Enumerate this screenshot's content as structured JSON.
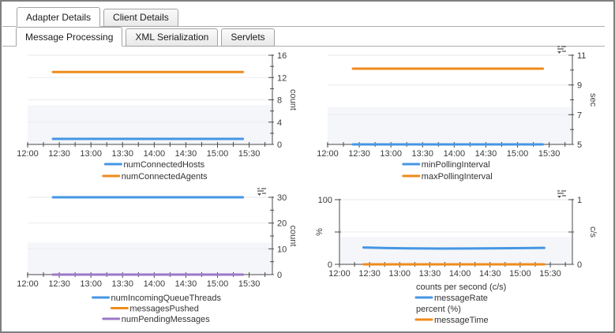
{
  "tabs": {
    "primary": [
      {
        "label": "Adapter Details",
        "active": true
      },
      {
        "label": "Client Details",
        "active": false
      }
    ],
    "secondary": [
      {
        "label": "Message Processing",
        "active": true
      },
      {
        "label": "XML Serialization",
        "active": false
      },
      {
        "label": "Servlets",
        "active": false
      }
    ]
  },
  "colors": {
    "blue": "#4596e3",
    "orange": "#ee8b1c",
    "purple": "#9b77c8",
    "axis": "#4a4a4a",
    "grid": "#ececec",
    "plot_top_edge": "#e4e7ea",
    "band": "#f4f6f9",
    "panel_border": "#7f7f7f",
    "tick_text": "#3a3a3a",
    "legend_text": "#333333",
    "icon": "#5a5a5a"
  },
  "chart_data": [
    {
      "id": "connected-counts",
      "type": "line",
      "position": "top-left",
      "menu_icon": false,
      "x_axis": {
        "labels": [
          "12:00",
          "12:30",
          "13:00",
          "13:30",
          "14:00",
          "14:30",
          "15:00",
          "15:30"
        ],
        "range": [
          "12:00",
          "15:52"
        ],
        "minor_step_min": 15
      },
      "y_axis": {
        "side": "right",
        "title": "count",
        "min": 0,
        "max": 16,
        "labeled_ticks": [
          0,
          4,
          8,
          12,
          16
        ],
        "minor_step": 2,
        "gridlines": [
          4,
          8,
          12
        ]
      },
      "band_below": 7,
      "series": [
        {
          "name": "numConnectedHosts",
          "color": "#4596e3",
          "points": [
            [
              "12:24",
              1
            ],
            [
              "15:24",
              1
            ]
          ]
        },
        {
          "name": "numConnectedAgents",
          "color": "#ee8b1c",
          "points": [
            [
              "12:24",
              13
            ],
            [
              "15:24",
              13
            ]
          ]
        }
      ],
      "legend_rows": [
        {
          "item": "numConnectedHosts",
          "color": "#4596e3"
        },
        {
          "item": "numConnectedAgents",
          "color": "#ee8b1c"
        }
      ]
    },
    {
      "id": "polling-interval",
      "type": "line",
      "position": "top-right",
      "menu_icon": true,
      "x_axis": {
        "labels": [
          "12:00",
          "12:30",
          "13:00",
          "13:30",
          "14:00",
          "14:30",
          "15:00",
          "15:30"
        ],
        "range": [
          "12:00",
          "15:52"
        ],
        "minor_step_min": 15
      },
      "y_axis": {
        "side": "right",
        "title": "sec",
        "min": 5,
        "max": 11,
        "labeled_ticks": [
          5,
          7,
          9,
          11
        ],
        "minor_step": 1,
        "gridlines": [
          7,
          9
        ]
      },
      "band_below": 7.5,
      "series": [
        {
          "name": "minPollingInterval",
          "color": "#4596e3",
          "points": [
            [
              "12:24",
              5
            ],
            [
              "15:24",
              5
            ]
          ]
        },
        {
          "name": "maxPollingInterval",
          "color": "#ee8b1c",
          "points": [
            [
              "12:24",
              10.1
            ],
            [
              "15:24",
              10.1
            ]
          ]
        }
      ],
      "legend_rows": [
        {
          "item": "minPollingInterval",
          "color": "#4596e3"
        },
        {
          "item": "maxPollingInterval",
          "color": "#ee8b1c"
        }
      ]
    },
    {
      "id": "queue-threads",
      "type": "line",
      "position": "bottom-left",
      "menu_icon": true,
      "x_axis": {
        "labels": [
          "12:00",
          "12:30",
          "13:00",
          "13:30",
          "14:00",
          "14:30",
          "15:00",
          "15:30"
        ],
        "range": [
          "12:00",
          "15:52"
        ],
        "minor_step_min": 15
      },
      "y_axis": {
        "side": "right",
        "title": "count",
        "min": 0,
        "max": 30,
        "labeled_ticks": [
          0,
          10,
          20,
          30
        ],
        "minor_step": 5,
        "gridlines": [
          10,
          20
        ]
      },
      "band_below": 12.5,
      "series": [
        {
          "name": "numIncomingQueueThreads",
          "color": "#4596e3",
          "points": [
            [
              "12:24",
              30
            ],
            [
              "15:24",
              30
            ]
          ]
        },
        {
          "name": "messagesPushed",
          "color": "#ee8b1c",
          "points": [
            [
              "12:24",
              0
            ],
            [
              "15:24",
              0
            ]
          ]
        },
        {
          "name": "numPendingMessages",
          "color": "#9b77c8",
          "points": [
            [
              "12:24",
              0
            ],
            [
              "15:24",
              0
            ]
          ]
        }
      ],
      "legend_rows": [
        {
          "item": "numIncomingQueueThreads",
          "color": "#4596e3"
        },
        {
          "item": "messagesPushed",
          "color": "#ee8b1c"
        },
        {
          "item": "numPendingMessages",
          "color": "#9b77c8"
        }
      ]
    },
    {
      "id": "message-rate",
      "type": "line",
      "position": "bottom-right",
      "menu_icon": true,
      "x_axis": {
        "labels": [
          "12:00",
          "12:30",
          "13:00",
          "13:30",
          "14:00",
          "14:30",
          "15:00",
          "15:30"
        ],
        "range": [
          "12:00",
          "15:52"
        ],
        "minor_step_min": 15
      },
      "y_axis_left": {
        "side": "left",
        "title": "%",
        "min": 0,
        "max": 100,
        "labeled_ticks": [
          0,
          100
        ],
        "tick_values": [
          0,
          50,
          100
        ],
        "gridlines": [
          50
        ]
      },
      "y_axis_right": {
        "side": "right",
        "title": "c/s",
        "min": 0,
        "max": 1,
        "labeled_ticks": [
          0,
          1
        ],
        "tick_values": [
          0,
          0.5,
          1
        ],
        "gridlines": []
      },
      "band_below_percent": 42,
      "series": [
        {
          "name": "messageRate",
          "axis": "right",
          "color": "#4596e3",
          "points": [
            [
              "12:24",
              0.26
            ],
            [
              "12:48",
              0.252
            ],
            [
              "13:12",
              0.247
            ],
            [
              "13:40",
              0.244
            ],
            [
              "14:10",
              0.246
            ],
            [
              "14:40",
              0.249
            ],
            [
              "15:05",
              0.252
            ],
            [
              "15:24",
              0.254
            ]
          ]
        },
        {
          "name": "messageTime",
          "axis": "left",
          "color": "#ee8b1c",
          "points": [
            [
              "12:24",
              0
            ],
            [
              "15:24",
              0
            ]
          ]
        }
      ],
      "legend_rows": [
        {
          "header": "counts per second (c/s)"
        },
        {
          "item": "messageRate",
          "color": "#4596e3"
        },
        {
          "header": "percent (%)"
        },
        {
          "item": "messageTime",
          "color": "#ee8b1c"
        }
      ]
    }
  ]
}
